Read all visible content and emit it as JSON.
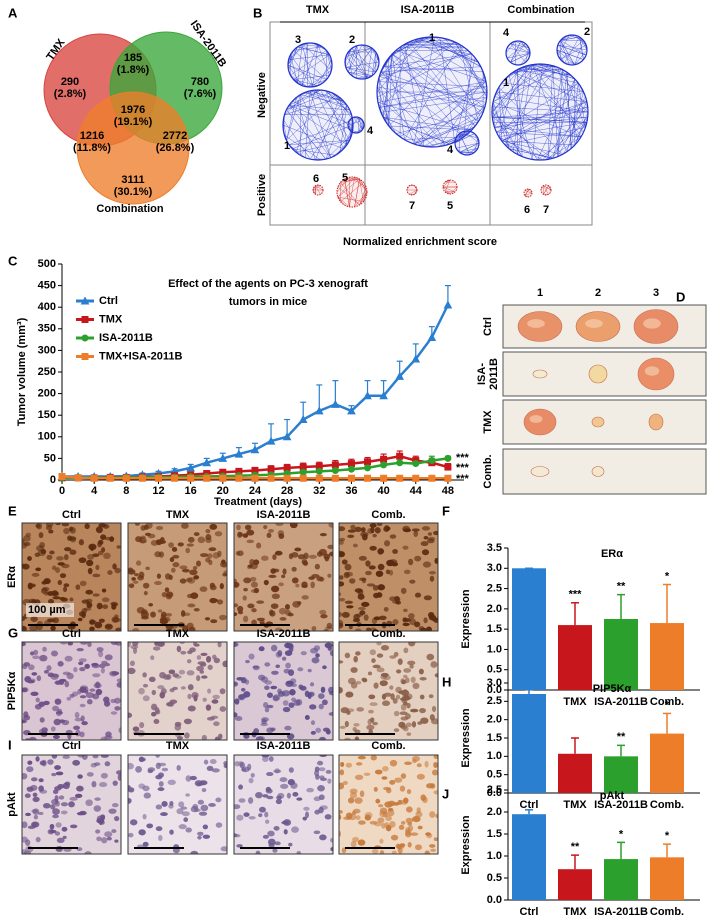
{
  "panel_letters": [
    "A",
    "B",
    "C",
    "D",
    "E",
    "F",
    "G",
    "H",
    "I",
    "J"
  ],
  "venn": {
    "sets": [
      {
        "name": "TMX",
        "color": "#d9453f"
      },
      {
        "name": "ISA-2011B",
        "color": "#3aa63a"
      },
      {
        "name": "Combination",
        "color": "#ee7d2a"
      }
    ],
    "regions": [
      {
        "count": 290,
        "percent": "(2.8%)"
      },
      {
        "count": 185,
        "percent": "(1.8%)"
      },
      {
        "count": 780,
        "percent": "(7.6%)"
      },
      {
        "count": 1976,
        "percent": "(19.1%)"
      },
      {
        "count": 1216,
        "percent": "(11.8%)"
      },
      {
        "count": 2772,
        "percent": "(26.8%)"
      },
      {
        "count": 3111,
        "percent": "(30.1%)"
      }
    ]
  },
  "network": {
    "columns": [
      {
        "name": "TMX",
        "negative": [
          "3",
          "2",
          "1",
          "4"
        ],
        "positive": [
          "6",
          "5"
        ]
      },
      {
        "name": "ISA-2011B",
        "negative": [
          "1",
          "4"
        ],
        "positive": [
          "7",
          "5"
        ]
      },
      {
        "name": "Combination",
        "negative": [
          "4",
          "2",
          "1"
        ],
        "positive": [
          "6",
          "7"
        ]
      }
    ],
    "rows": [
      "Negative",
      "Positive"
    ],
    "x_label": "Normalized enrichment score"
  },
  "tumor_photos": {
    "columns": [
      "1",
      "2",
      "3"
    ],
    "rows": [
      [
        "Ctrl"
      ],
      [
        "ISA-",
        "2011B"
      ],
      [
        "TMX"
      ],
      [
        "Comb."
      ]
    ]
  },
  "ihc": {
    "columns": [
      "Ctrl",
      "TMX",
      "ISA-2011B",
      "Comb."
    ],
    "rows": [
      "ERα",
      "PIP5Kα",
      "pAkt"
    ],
    "scale": "100 µm"
  },
  "chart_data": [
    {
      "type": "line",
      "title": [
        "Effect of the agents on PC-3 xenograft",
        "tumors in mice"
      ],
      "x_label": "Treatment (days)",
      "y_label": "Tumor volume (mm³)",
      "x": [
        0,
        2,
        4,
        6,
        8,
        10,
        12,
        14,
        16,
        18,
        20,
        22,
        24,
        26,
        28,
        30,
        32,
        34,
        36,
        38,
        40,
        42,
        44,
        46,
        48
      ],
      "xlim": [
        0,
        50
      ],
      "xticks": [
        0,
        4,
        8,
        12,
        16,
        20,
        24,
        28,
        32,
        36,
        40,
        44,
        48
      ],
      "ylim": [
        0,
        500
      ],
      "yticks": [
        0,
        50,
        100,
        150,
        200,
        250,
        300,
        350,
        400,
        450,
        500
      ],
      "series": [
        {
          "name": "Ctrl",
          "color": "#2a7fd0",
          "values": [
            8,
            8,
            8,
            8,
            9,
            12,
            15,
            20,
            28,
            40,
            50,
            60,
            70,
            90,
            100,
            140,
            160,
            175,
            160,
            195,
            195,
            240,
            280,
            330,
            405
          ],
          "errors": [
            2,
            2,
            2,
            2,
            3,
            4,
            5,
            6,
            8,
            10,
            12,
            15,
            15,
            40,
            40,
            40,
            60,
            55,
            12,
            35,
            35,
            35,
            35,
            25,
            45
          ]
        },
        {
          "name": "TMX",
          "color": "#c8161d",
          "values": [
            5,
            5,
            5,
            6,
            6,
            7,
            8,
            10,
            12,
            15,
            18,
            20,
            22,
            25,
            28,
            30,
            32,
            35,
            38,
            42,
            48,
            55,
            45,
            40,
            30
          ],
          "errors": [
            2,
            2,
            2,
            2,
            2,
            3,
            3,
            4,
            4,
            5,
            6,
            6,
            7,
            8,
            8,
            9,
            9,
            10,
            10,
            10,
            12,
            12,
            10,
            10,
            8
          ]
        },
        {
          "name": "ISA-2011B",
          "color": "#2ca02c",
          "values": [
            5,
            5,
            5,
            5,
            6,
            6,
            7,
            7,
            8,
            8,
            9,
            10,
            11,
            12,
            15,
            18,
            20,
            22,
            25,
            28,
            35,
            40,
            38,
            45,
            50
          ],
          "errors": [
            2,
            2,
            2,
            2,
            2,
            2,
            2,
            2,
            3,
            3,
            3,
            3,
            4,
            4,
            4,
            5,
            5,
            6,
            6,
            8,
            10,
            12,
            10,
            10,
            5
          ]
        },
        {
          "name": "TMX+ISA-2011B",
          "color": "#ee7d2a",
          "values": [
            8,
            5,
            4,
            4,
            4,
            4,
            4,
            4,
            4,
            4,
            4,
            4,
            4,
            4,
            4,
            4,
            4,
            4,
            4,
            4,
            4,
            4,
            4,
            4,
            4
          ],
          "errors": [
            2,
            1,
            1,
            1,
            1,
            1,
            1,
            1,
            1,
            1,
            1,
            1,
            1,
            1,
            1,
            1,
            1,
            1,
            1,
            1,
            1,
            1,
            1,
            1,
            1
          ]
        }
      ],
      "annotations": [
        "***",
        "***",
        "***"
      ]
    },
    {
      "type": "bar",
      "title": "ERα",
      "y_label": "Expression",
      "categories": [
        "Ctrl",
        "TMX",
        "ISA-2011B",
        "Comb."
      ],
      "colors": [
        "#2a7fd0",
        "#c8161d",
        "#2ca02c",
        "#ee7d2a"
      ],
      "values": [
        3.0,
        1.6,
        1.75,
        1.65
      ],
      "errors": [
        0,
        0.55,
        0.6,
        0.95
      ],
      "significance": [
        null,
        "***",
        "**",
        "*"
      ],
      "ylim": [
        0,
        3.5
      ],
      "yticks": [
        {
          "value": 0,
          "label": "0.0"
        },
        0.5,
        {
          "value": 1,
          "label": "1.0"
        },
        1.5,
        {
          "value": 2,
          "label": "2.0"
        },
        2.5,
        {
          "value": 3,
          "label": "3.0"
        },
        3.5
      ]
    },
    {
      "type": "bar",
      "title": "PIP5Kα",
      "y_label": "Expression",
      "categories": [
        "Ctrl",
        "TMX",
        "ISA-2011B",
        "Comb."
      ],
      "colors": [
        "#2a7fd0",
        "#c8161d",
        "#2ca02c",
        "#ee7d2a"
      ],
      "values": [
        2.7,
        1.07,
        1.0,
        1.62
      ],
      "errors": [
        0.12,
        0.43,
        0.3,
        0.55
      ],
      "significance": [
        null,
        null,
        "**",
        "*"
      ],
      "ylim": [
        0,
        3.0
      ],
      "yticks": [
        {
          "value": 0,
          "label": "0.0"
        },
        0.5,
        {
          "value": 1,
          "label": "1.0"
        },
        1.5,
        {
          "value": 2,
          "label": "2.0"
        },
        2.5,
        {
          "value": 3,
          "label": "3.0"
        }
      ]
    },
    {
      "type": "bar",
      "title": "pAkt",
      "y_label": "Expression",
      "categories": [
        "Ctrl",
        "TMX",
        "ISA-2011B",
        "Comb."
      ],
      "colors": [
        "#2a7fd0",
        "#c8161d",
        "#2ca02c",
        "#ee7d2a"
      ],
      "values": [
        1.95,
        0.7,
        0.93,
        0.97
      ],
      "errors": [
        0.1,
        0.32,
        0.38,
        0.3
      ],
      "significance": [
        null,
        "**",
        "*",
        "*"
      ],
      "ylim": [
        0,
        2.5
      ],
      "yticks": [
        {
          "value": 0,
          "label": "0.0"
        },
        0.5,
        {
          "value": 1,
          "label": "1.0"
        },
        1.5,
        {
          "value": 2,
          "label": "2.0"
        },
        2.5
      ]
    }
  ]
}
